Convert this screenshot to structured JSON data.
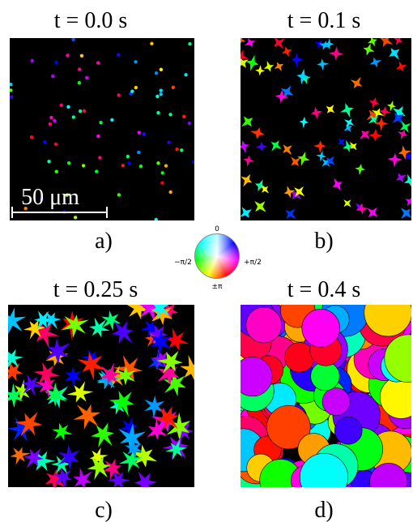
{
  "panels": [
    {
      "title": "t = 0.0 s",
      "label": "a)",
      "scale_bar": "50 μm"
    },
    {
      "title": "t = 0.1 s",
      "label": "b)"
    },
    {
      "title": "t = 0.25 s",
      "label": "c)"
    },
    {
      "title": "t = 0.4 s",
      "label": "d)"
    }
  ],
  "color_wheel": {
    "top": "0",
    "left": "−π/2",
    "right": "+π/2",
    "bottom": "±π"
  }
}
